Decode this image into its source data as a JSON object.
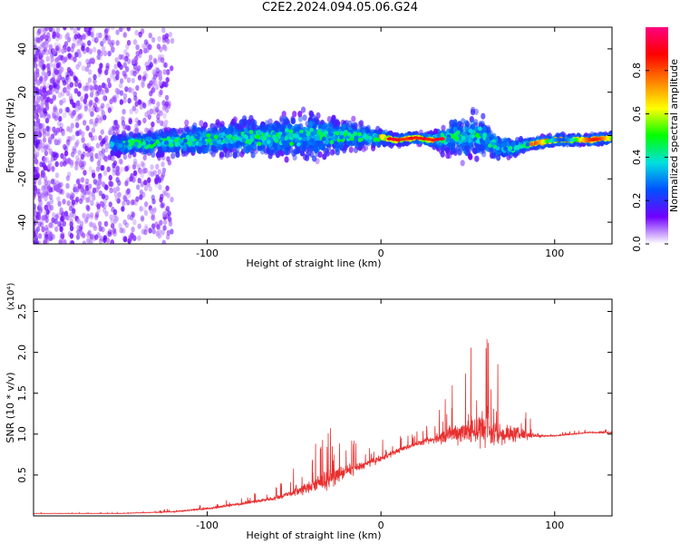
{
  "title": "C2E2.2024.094.05.06.G24",
  "chart_data": [
    {
      "type": "heatmap",
      "xlabel": "Height of straight line (km)",
      "ylabel": "Frequency (Hz)",
      "xlim": [
        -200,
        133
      ],
      "ylim": [
        -50,
        50
      ],
      "xticks": [
        -100,
        0,
        100
      ],
      "yticks": [
        -40,
        -20,
        0,
        20,
        40
      ],
      "colorbar": {
        "label": "Normalized spectral amplitude",
        "ticks": [
          "0.0",
          "0.2",
          "0.4",
          "0.6",
          "0.8"
        ],
        "range": [
          0,
          1
        ],
        "colors": [
          "#ffffff",
          "#7000ff",
          "#0050ff",
          "#00e0e0",
          "#00ff00",
          "#ffff00",
          "#ff8000",
          "#ff0000",
          "#ff0080"
        ]
      },
      "signal_track": {
        "x": [
          -150,
          -120,
          -100,
          -80,
          -60,
          -40,
          -20,
          0,
          10,
          20,
          30,
          40,
          55,
          65,
          75,
          85,
          100,
          120,
          133
        ],
        "frequency": [
          -4,
          -3,
          -2,
          -1,
          -1,
          0,
          0,
          -1,
          -2,
          -1,
          -2,
          -1,
          0,
          -4,
          -6,
          -4,
          -2,
          -2,
          -1
        ],
        "spread": [
          6,
          8,
          10,
          11,
          12,
          14,
          9,
          5,
          3,
          3,
          4,
          12,
          14,
          8,
          5,
          3,
          3,
          3,
          3
        ]
      }
    },
    {
      "type": "line",
      "xlabel": "Height of straight line (km)",
      "ylabel": "SNR (10 * v/v)",
      "y_multiplier": "(x10⁴)",
      "xlim": [
        -200,
        133
      ],
      "ylim": [
        0,
        2.65
      ],
      "xticks": [
        -100,
        0,
        100
      ],
      "yticks": [
        0.5,
        1.0,
        1.5,
        2.0,
        2.5
      ],
      "color": "#e83030",
      "series": [
        {
          "x": [
            -200,
            -150,
            -120,
            -100,
            -80,
            -60,
            -40,
            -30,
            -20,
            -10,
            0,
            10,
            20,
            30,
            40,
            50,
            60,
            70,
            80,
            90,
            100,
            110,
            120,
            133
          ],
          "y": [
            0.03,
            0.03,
            0.05,
            0.09,
            0.15,
            0.22,
            0.36,
            0.45,
            0.55,
            0.62,
            0.7,
            0.8,
            0.88,
            0.93,
            1.0,
            1.05,
            1.05,
            1.0,
            1.0,
            0.98,
            0.98,
            1.0,
            1.02,
            1.02
          ],
          "noise": [
            0.005,
            0.005,
            0.02,
            0.04,
            0.05,
            0.08,
            0.25,
            0.35,
            0.25,
            0.15,
            0.12,
            0.1,
            0.08,
            0.15,
            0.35,
            0.55,
            0.85,
            0.45,
            0.25,
            0.05,
            0.02,
            0.02,
            0.02,
            0.03
          ]
        }
      ]
    }
  ]
}
